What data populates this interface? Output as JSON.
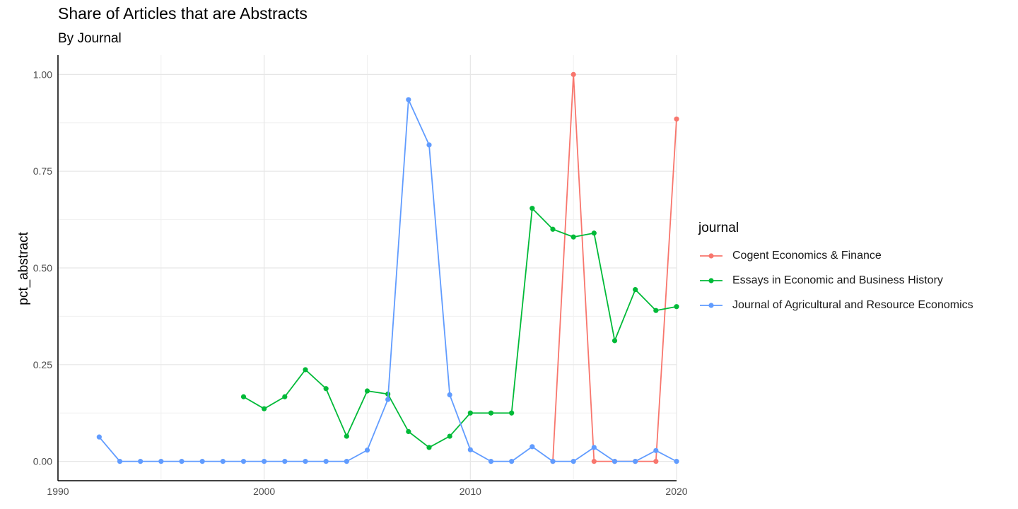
{
  "chart_data": {
    "type": "line",
    "title": "Share of Articles that are Abstracts",
    "subtitle": "By Journal",
    "xlabel": "",
    "ylabel": "pct_abstract",
    "xlim": [
      1990,
      2020
    ],
    "ylim": [
      -0.05,
      1.05
    ],
    "x_ticks": [
      1990,
      2000,
      2010,
      2020
    ],
    "y_ticks": [
      0.0,
      0.25,
      0.5,
      0.75,
      1.0
    ],
    "y_tick_labels": [
      "0.00",
      "0.25",
      "0.50",
      "0.75",
      "1.00"
    ],
    "grid": true,
    "legend": {
      "title": "journal",
      "position": "right"
    },
    "series": [
      {
        "name": "Cogent Economics & Finance",
        "color": "#F8766D",
        "x": [
          2014,
          2015,
          2016,
          2017,
          2018,
          2019,
          2020
        ],
        "y": [
          0.0,
          1.0,
          0.0,
          0.0,
          0.0,
          0.0,
          0.885
        ]
      },
      {
        "name": "Essays in Economic and Business History",
        "color": "#00BA38",
        "x": [
          1999,
          2000,
          2001,
          2002,
          2003,
          2004,
          2005,
          2006,
          2007,
          2008,
          2009,
          2010,
          2011,
          2012,
          2013,
          2014,
          2015,
          2016,
          2017,
          2018,
          2019,
          2020
        ],
        "y": [
          0.167,
          0.136,
          0.167,
          0.237,
          0.188,
          0.065,
          0.182,
          0.174,
          0.077,
          0.036,
          0.065,
          0.125,
          0.125,
          0.125,
          0.654,
          0.6,
          0.58,
          0.59,
          0.312,
          0.444,
          0.39,
          0.4
        ]
      },
      {
        "name": "Journal of Agricultural and Resource Economics",
        "color": "#619CFF",
        "x": [
          1992,
          1993,
          1994,
          1995,
          1996,
          1997,
          1998,
          1999,
          2000,
          2001,
          2002,
          2003,
          2004,
          2005,
          2006,
          2007,
          2008,
          2009,
          2010,
          2011,
          2012,
          2013,
          2014,
          2015,
          2016,
          2017,
          2018,
          2019,
          2020
        ],
        "y": [
          0.063,
          0.0,
          0.0,
          0.0,
          0.0,
          0.0,
          0.0,
          0.0,
          0.0,
          0.0,
          0.0,
          0.0,
          0.0,
          0.029,
          0.16,
          0.935,
          0.818,
          0.172,
          0.03,
          0.0,
          0.0,
          0.038,
          0.0,
          0.0,
          0.036,
          0.0,
          0.0,
          0.028,
          0.0
        ]
      }
    ]
  }
}
